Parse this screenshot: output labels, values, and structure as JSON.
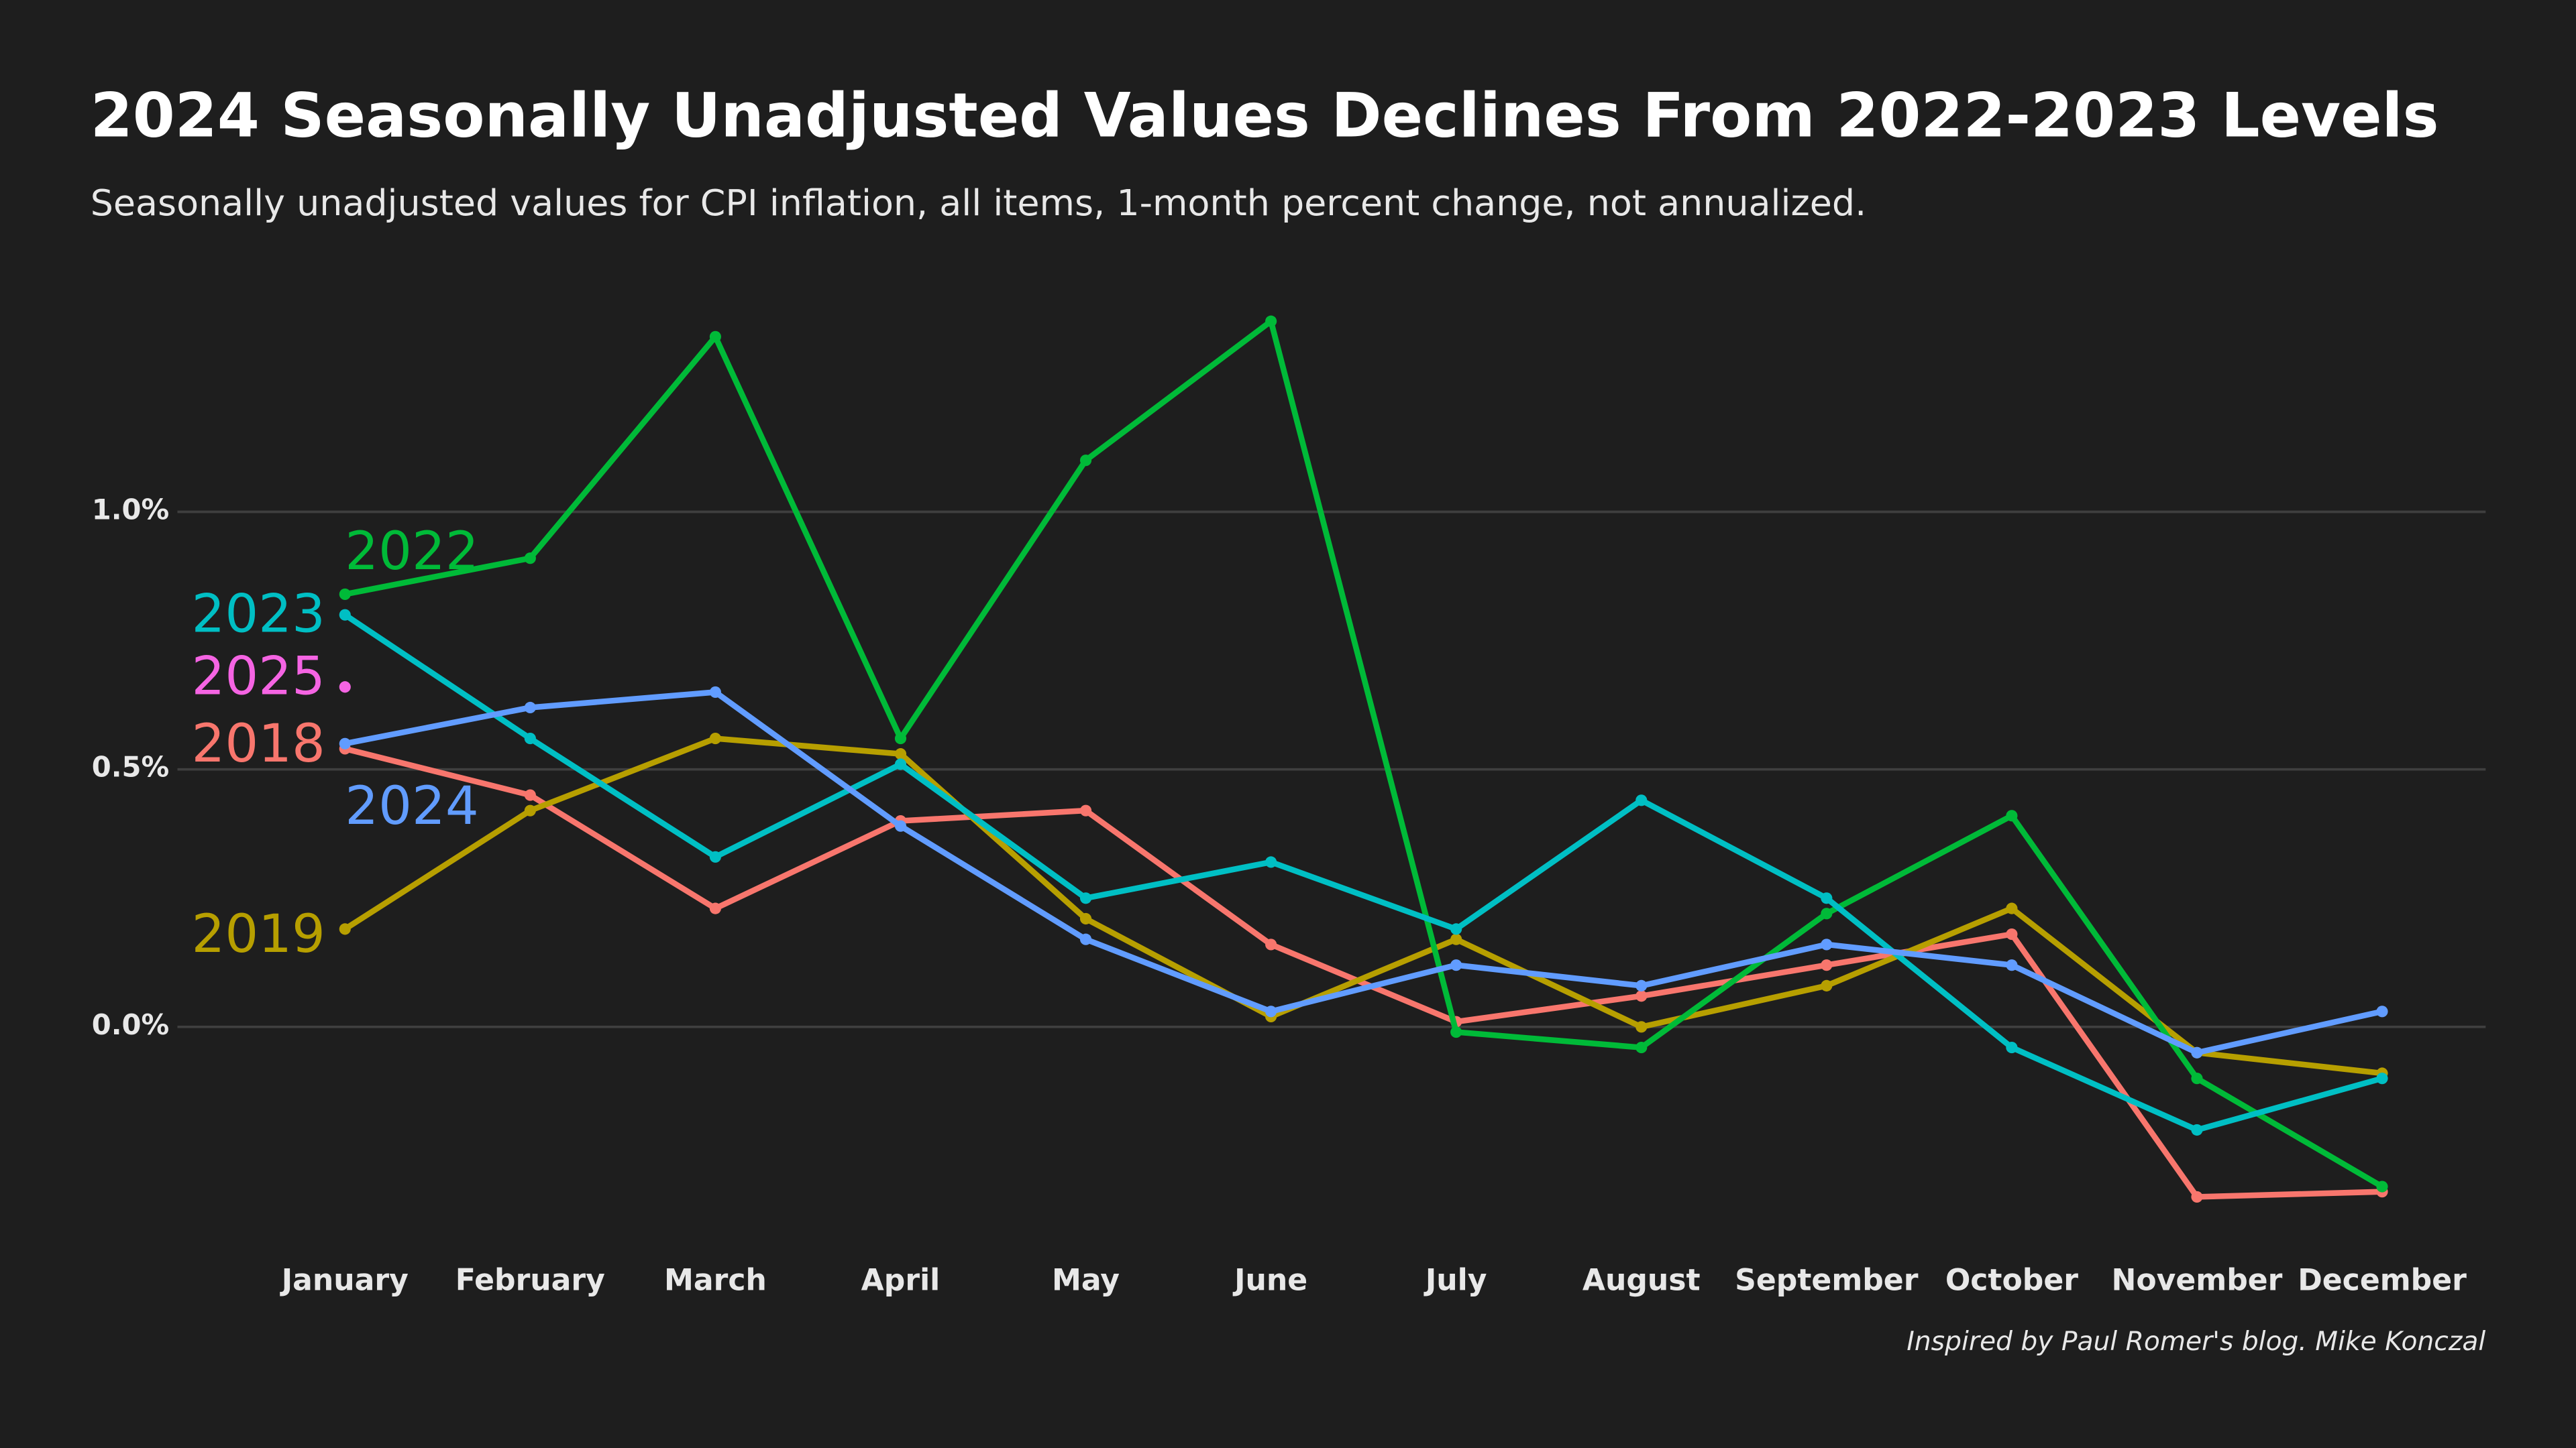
{
  "chart_data": {
    "type": "line",
    "title": "2024 Seasonally Unadjusted Values Declines From 2022-2023 Levels",
    "subtitle": "Seasonally unadjusted values for CPI inflation, all items, 1-month percent change, not annualized.",
    "caption": "Inspired by Paul Romer's blog. Mike Konczal",
    "categories": [
      "January",
      "February",
      "March",
      "April",
      "May",
      "June",
      "July",
      "August",
      "September",
      "October",
      "November",
      "December"
    ],
    "ylim": [
      -0.4,
      1.42
    ],
    "yticks": [
      {
        "value": 0,
        "label": "0.0%"
      },
      {
        "value": 0.5,
        "label": "0.5%"
      },
      {
        "value": 1,
        "label": "1.0%"
      }
    ],
    "grid": true,
    "series": [
      {
        "name": "2018",
        "color": "#f8766d",
        "values": [
          0.54,
          0.45,
          0.23,
          0.4,
          0.42,
          0.16,
          0.01,
          0.06,
          0.12,
          0.18,
          -0.33,
          -0.32
        ]
      },
      {
        "name": "2019",
        "color": "#b79f00",
        "values": [
          0.19,
          0.42,
          0.56,
          0.53,
          0.21,
          0.02,
          0.17,
          0.0,
          0.08,
          0.23,
          -0.05,
          -0.09
        ]
      },
      {
        "name": "2022",
        "color": "#00ba38",
        "values": [
          0.84,
          0.91,
          1.34,
          0.56,
          1.1,
          1.37,
          -0.01,
          -0.04,
          0.22,
          0.41,
          -0.1,
          -0.31
        ]
      },
      {
        "name": "2023",
        "color": "#00bfc4",
        "values": [
          0.8,
          0.56,
          0.33,
          0.51,
          0.25,
          0.32,
          0.19,
          0.44,
          0.25,
          -0.04,
          -0.2,
          -0.1
        ]
      },
      {
        "name": "2024",
        "color": "#619cff",
        "values": [
          0.55,
          0.62,
          0.65,
          0.39,
          0.17,
          0.03,
          0.12,
          0.08,
          0.16,
          0.12,
          -0.05,
          0.03
        ]
      },
      {
        "name": "2025",
        "color": "#f564e3",
        "values": [
          0.66,
          null,
          null,
          null,
          null,
          null,
          null,
          null,
          null,
          null,
          null,
          null
        ]
      }
    ]
  }
}
